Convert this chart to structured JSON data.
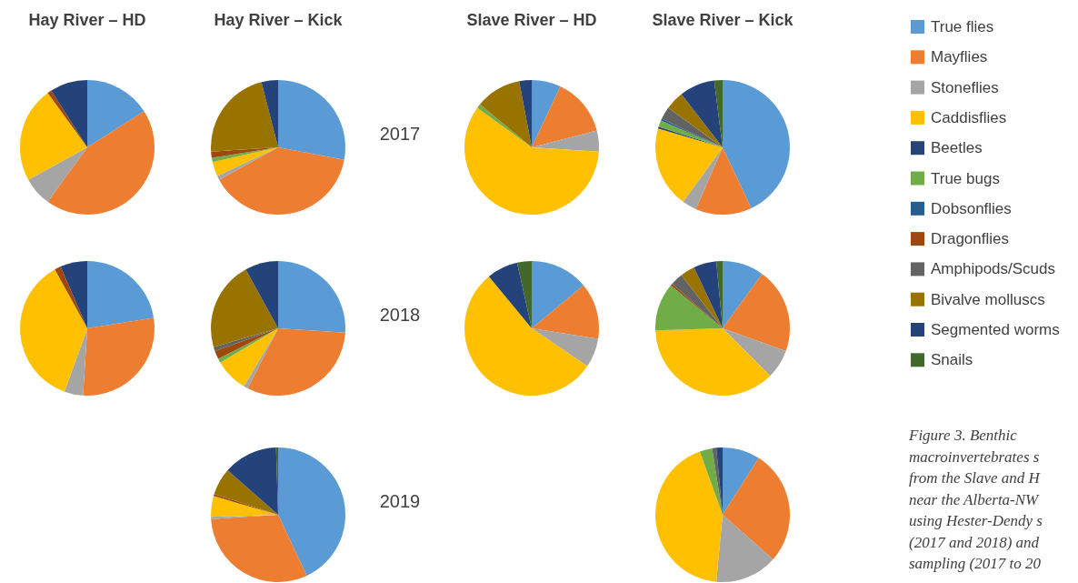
{
  "chart_data": [
    {
      "type": "pie",
      "title": "Hay River – HD",
      "legend": "right",
      "categories": [
        "True flies",
        "Mayflies",
        "Stoneflies",
        "Caddisflies",
        "Beetles",
        "True bugs",
        "Dobsonflies",
        "Dragonflies",
        "Amphipods/Scuds",
        "Bivalve molluscs",
        "Segmented worms",
        "Snails"
      ],
      "colors": [
        "#5b9bd5",
        "#ed7d31",
        "#a5a5a5",
        "#ffc000",
        "#264478",
        "#70ad47",
        "#255e91",
        "#9e480e",
        "#636363",
        "#997300",
        "#24437a",
        "#43682b"
      ],
      "values": [
        16,
        44,
        7,
        23,
        0,
        0,
        0,
        1,
        0,
        0,
        9,
        0
      ]
    },
    {
      "type": "pie",
      "title": "Hay River – Kick",
      "colors": [
        "#5b9bd5",
        "#ed7d31",
        "#a5a5a5",
        "#ffc000",
        "#264478",
        "#70ad47",
        "#255e91",
        "#9e480e",
        "#636363",
        "#997300",
        "#24437a",
        "#43682b"
      ],
      "values": [
        28,
        39,
        1,
        3.5,
        0,
        1,
        0,
        1.5,
        0,
        22,
        4,
        0
      ]
    },
    {
      "type": "pie",
      "title": "Slave River – HD",
      "colors": [
        "#5b9bd5",
        "#ed7d31",
        "#a5a5a5",
        "#ffc000",
        "#264478",
        "#70ad47",
        "#255e91",
        "#9e480e",
        "#636363",
        "#997300",
        "#24437a",
        "#43682b"
      ],
      "values": [
        7,
        14,
        5,
        59,
        0,
        1,
        0,
        0,
        0,
        11,
        3,
        0
      ]
    },
    {
      "type": "pie",
      "title": "Slave River – Kick",
      "colors": [
        "#5b9bd5",
        "#ed7d31",
        "#a5a5a5",
        "#ffc000",
        "#264478",
        "#70ad47",
        "#255e91",
        "#9e480e",
        "#636363",
        "#997300",
        "#24437a",
        "#43682b"
      ],
      "values": [
        43,
        13.5,
        3.5,
        19.5,
        0.5,
        1.5,
        0.5,
        0,
        3,
        4.5,
        8.5,
        2
      ]
    },
    {
      "type": "pie",
      "colors": [
        "#5b9bd5",
        "#ed7d31",
        "#a5a5a5",
        "#ffc000",
        "#264478",
        "#70ad47",
        "#255e91",
        "#9e480e",
        "#636363",
        "#997300",
        "#24437a",
        "#43682b"
      ],
      "values": [
        22.5,
        28.5,
        4.5,
        36.5,
        0,
        0,
        0,
        1.5,
        0,
        0,
        6.5,
        0
      ]
    },
    {
      "type": "pie",
      "colors": [
        "#5b9bd5",
        "#ed7d31",
        "#a5a5a5",
        "#ffc000",
        "#264478",
        "#70ad47",
        "#255e91",
        "#9e480e",
        "#636363",
        "#997300",
        "#24437a",
        "#43682b"
      ],
      "values": [
        26,
        31.5,
        1,
        8,
        0,
        1,
        0,
        2,
        1,
        21.5,
        8,
        0
      ]
    },
    {
      "type": "pie",
      "colors": [
        "#5b9bd5",
        "#ed7d31",
        "#a5a5a5",
        "#ffc000",
        "#264478",
        "#70ad47",
        "#255e91",
        "#9e480e",
        "#636363",
        "#997300",
        "#24437a",
        "#43682b"
      ],
      "values": [
        14,
        13.5,
        7,
        54.5,
        0,
        0,
        0,
        0,
        0,
        0,
        7.5,
        3.5
      ]
    },
    {
      "type": "pie",
      "colors": [
        "#5b9bd5",
        "#ed7d31",
        "#a5a5a5",
        "#ffc000",
        "#264478",
        "#70ad47",
        "#255e91",
        "#9e480e",
        "#636363",
        "#997300",
        "#24437a",
        "#43682b"
      ],
      "values": [
        10,
        20.5,
        7,
        37,
        0,
        11.5,
        0,
        0.5,
        3,
        3.5,
        5.5,
        1.5
      ]
    },
    {
      "type": "pie",
      "colors": [
        "#5b9bd5",
        "#ed7d31",
        "#a5a5a5",
        "#ffc000",
        "#264478",
        "#70ad47",
        "#255e91",
        "#9e480e",
        "#636363",
        "#997300",
        "#24437a",
        "#43682b"
      ],
      "values": [
        43,
        31,
        0.5,
        5,
        0,
        0,
        0,
        0.5,
        0,
        6.5,
        13,
        0.5
      ]
    },
    {
      "type": "pie",
      "colors": [
        "#5b9bd5",
        "#ed7d31",
        "#a5a5a5",
        "#ffc000",
        "#264478",
        "#70ad47",
        "#255e91",
        "#9e480e",
        "#636363",
        "#997300",
        "#24437a",
        "#43682b"
      ],
      "values": [
        9,
        27.5,
        15,
        43,
        0,
        3,
        0,
        0,
        1,
        0,
        1.5,
        0
      ]
    },
    {
      "type": "other",
      "annotations": [
        "2017",
        "2018",
        "2019"
      ]
    },
    {
      "type": "other",
      "annotations": [
        "Figure 3. Benthic",
        "macroinvertebrates s",
        "from the Slave and H",
        "near the Alberta-NW",
        "using Hester-Dendy s",
        "(2017 and 2018) and",
        "sampling (2017 to 20"
      ]
    }
  ]
}
